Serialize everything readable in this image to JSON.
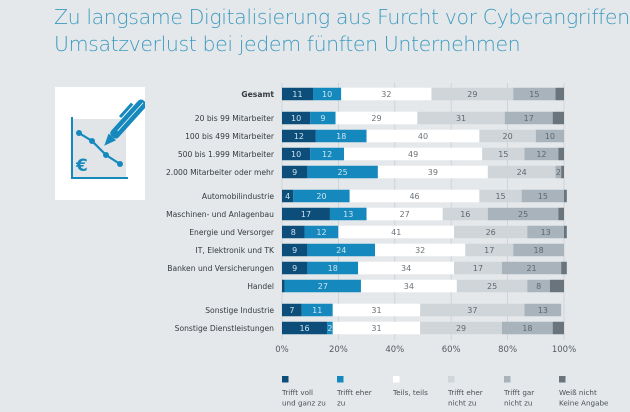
{
  "title": {
    "line1": "Zu langsame Digitalisierung aus Furcht vor Cyberangriffen:",
    "line2": "Umsatzverlust bei jedem fünften Unternehmen"
  },
  "icon": {
    "name": "chart-pen-euro-icon",
    "symbol": "€"
  },
  "colors": {
    "voll": "#0d4d7a",
    "eher": "#1589bd",
    "teils": "#ffffff",
    "eher_nicht": "#d0d5d9",
    "gar_nicht": "#a8b3bb",
    "weiss_nicht": "#6a747c"
  },
  "chart_data": {
    "type": "bar",
    "orientation": "horizontal-stacked-100",
    "title": "Zu langsame Digitalisierung aus Furcht vor Cyberangriffen: Umsatzverlust bei jedem fünften Unternehmen",
    "xlabel": "",
    "ylabel": "",
    "xlim": [
      0,
      100
    ],
    "x_ticks": [
      "0%",
      "20%",
      "40%",
      "60%",
      "80%",
      "100%"
    ],
    "grid": true,
    "legend_position": "bottom",
    "categories": [
      {
        "label": "Gesamt",
        "bold": true,
        "group": 0
      },
      {
        "label": "20 bis 99 Mitarbeiter",
        "group": 1
      },
      {
        "label": "100 bis 499 Mitarbeiter",
        "group": 1
      },
      {
        "label": "500 bis 1.999 Mitarbeiter",
        "group": 1
      },
      {
        "label": "2.000 Mitarbeiter oder mehr",
        "group": 1
      },
      {
        "label": "Automobilindustrie",
        "group": 2
      },
      {
        "label": "Maschinen- und Anlagenbau",
        "group": 2
      },
      {
        "label": "Energie und Versorger",
        "group": 2
      },
      {
        "label": "IT, Elektronik und TK",
        "group": 2
      },
      {
        "label": "Banken und Versicherungen",
        "group": 2
      },
      {
        "label": "Handel",
        "group": 2
      },
      {
        "label": "Sonstige Industrie",
        "group": 3
      },
      {
        "label": "Sonstige Dienstleistungen",
        "group": 3
      }
    ],
    "series": [
      {
        "key": "voll",
        "name": "Trifft voll und ganz zu",
        "legend_lines": [
          "Trifft voll",
          "und ganz zu"
        ],
        "values": [
          11,
          10,
          12,
          10,
          9,
          4,
          17,
          8,
          9,
          9,
          1,
          7,
          16
        ]
      },
      {
        "key": "eher",
        "name": "Trifft eher zu",
        "legend_lines": [
          "Trifft eher",
          "zu"
        ],
        "values": [
          10,
          9,
          18,
          12,
          25,
          20,
          13,
          12,
          24,
          18,
          27,
          11,
          2
        ]
      },
      {
        "key": "teils",
        "name": "Teils, teils",
        "legend_lines": [
          "Teils, teils",
          ""
        ],
        "values": [
          32,
          29,
          40,
          49,
          39,
          46,
          27,
          41,
          32,
          34,
          34,
          31,
          31
        ]
      },
      {
        "key": "eher_nicht",
        "name": "Trifft eher nicht zu",
        "legend_lines": [
          "Trifft eher",
          "nicht zu"
        ],
        "values": [
          29,
          31,
          20,
          15,
          24,
          15,
          16,
          26,
          17,
          17,
          25,
          37,
          29
        ]
      },
      {
        "key": "gar_nicht",
        "name": "Trifft gar nicht zu",
        "legend_lines": [
          "Trifft gar",
          "nicht zu"
        ],
        "values": [
          15,
          17,
          10,
          12,
          2,
          15,
          25,
          13,
          18,
          21,
          8,
          13,
          18
        ]
      },
      {
        "key": "weiss_nicht",
        "name": "Weiß nicht / Keine Angabe",
        "legend_lines": [
          "Weiß nicht",
          "Keine Angabe"
        ],
        "values": [
          3,
          4,
          0,
          2,
          1,
          1,
          2,
          1,
          0,
          2,
          5,
          0,
          4
        ]
      }
    ],
    "label_hidden_below": 2,
    "unlabeled_series": [
      "weiss_nicht"
    ]
  }
}
